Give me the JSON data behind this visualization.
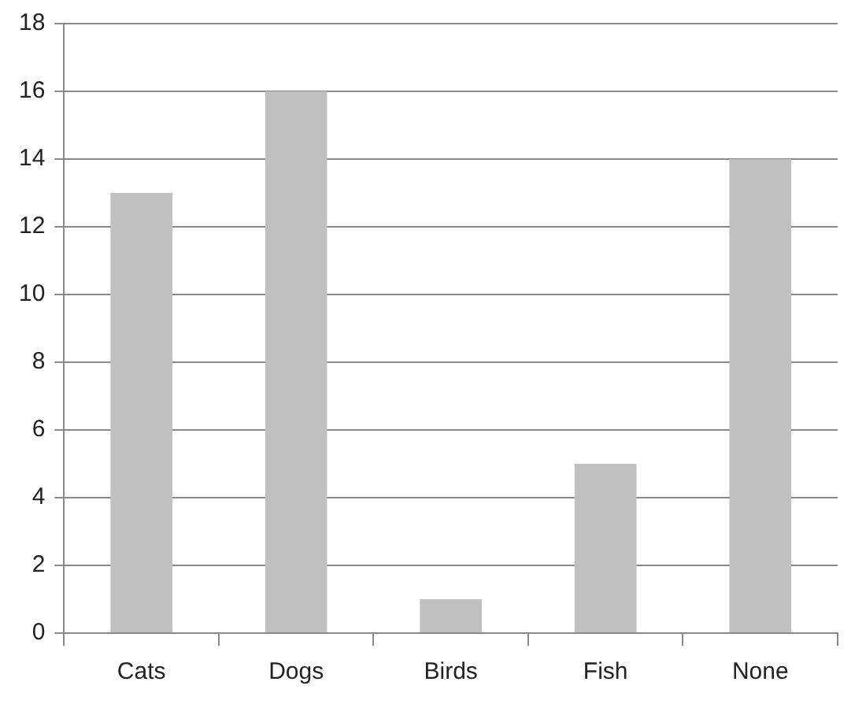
{
  "chart_data": {
    "type": "bar",
    "categories": [
      "Cats",
      "Dogs",
      "Birds",
      "Fish",
      "None"
    ],
    "values": [
      13,
      16,
      1,
      5,
      14
    ],
    "color": "#c0c0c0",
    "ylim": [
      0,
      18
    ],
    "yticks": [
      0,
      2,
      4,
      6,
      8,
      10,
      12,
      14,
      16,
      18
    ],
    "grid": "y"
  }
}
